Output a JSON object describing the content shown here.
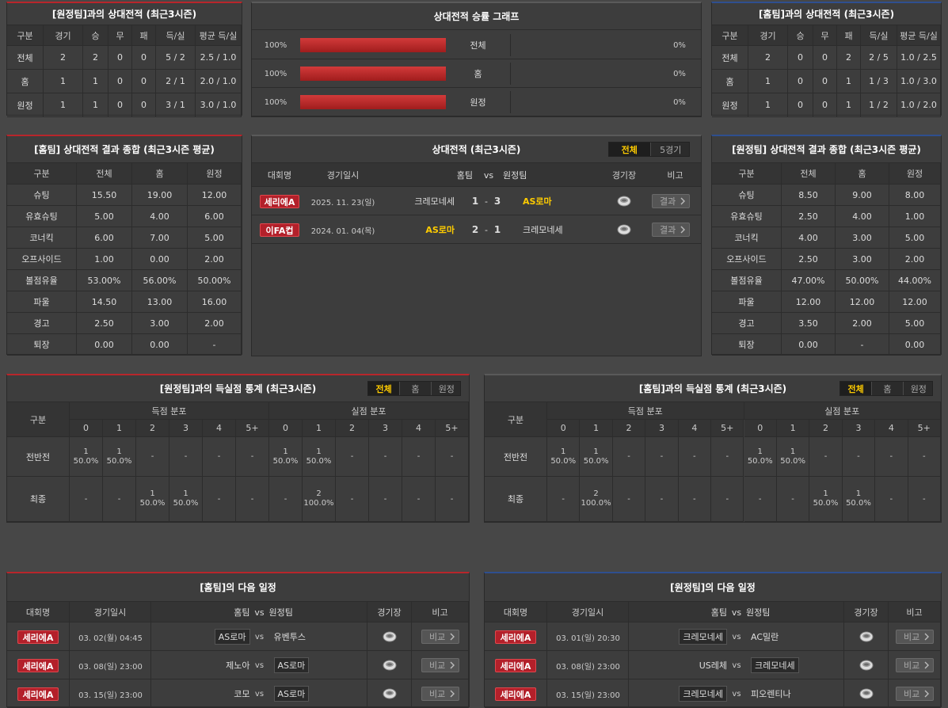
{
  "h2h_vs_away": {
    "title": "[원정팀]과의 상대전적 (최근3시즌)",
    "header": [
      "구분",
      "경기",
      "승",
      "무",
      "패",
      "득/실",
      "평균 득/실"
    ],
    "rows": [
      [
        "전체",
        2,
        2,
        0,
        0,
        "5 / 2",
        "2.5 / 1.0"
      ],
      [
        "홈",
        1,
        1,
        0,
        0,
        "2 / 1",
        "2.0 / 1.0"
      ],
      [
        "원정",
        1,
        1,
        0,
        0,
        "3 / 1",
        "3.0 / 1.0"
      ]
    ]
  },
  "win_rate": {
    "title": "상대전적 승률 그래프",
    "rows": [
      {
        "win_label": "100%",
        "win": 100,
        "label": "전체",
        "loss": 0,
        "loss_label": "0%"
      },
      {
        "win_label": "100%",
        "win": 100,
        "label": "홈",
        "loss": 0,
        "loss_label": "0%"
      },
      {
        "win_label": "100%",
        "win": 100,
        "label": "원정",
        "loss": 0,
        "loss_label": "0%"
      }
    ]
  },
  "h2h_vs_home": {
    "title": "[홈팀]과의 상대전적 (최근3시즌)",
    "header": [
      "구분",
      "경기",
      "승",
      "무",
      "패",
      "득/실",
      "평균 득/실"
    ],
    "rows": [
      [
        "전체",
        2,
        0,
        0,
        2,
        "2 / 5",
        "1.0 / 2.5"
      ],
      [
        "홈",
        1,
        0,
        0,
        1,
        "1 / 3",
        "1.0 / 3.0"
      ],
      [
        "원정",
        1,
        0,
        0,
        1,
        "1 / 2",
        "1.0 / 2.0"
      ]
    ]
  },
  "summary_home": {
    "title": "[홈팀] 상대전적 결과 종합 (최근3시즌 평균)",
    "header": [
      "구분",
      "전체",
      "홈",
      "원정"
    ],
    "rows": [
      [
        "슈팅",
        "15.50",
        "19.00",
        "12.00"
      ],
      [
        "유효슈팅",
        "5.00",
        "4.00",
        "6.00"
      ],
      [
        "코너킥",
        "6.00",
        "7.00",
        "5.00"
      ],
      [
        "오프사이드",
        "1.00",
        "0.00",
        "2.00"
      ],
      [
        "볼점유율",
        "53.00%",
        "56.00%",
        "50.00%"
      ],
      [
        "파울",
        "14.50",
        "13.00",
        "16.00"
      ],
      [
        "경고",
        "2.50",
        "3.00",
        "2.00"
      ],
      [
        "퇴장",
        "0.00",
        "0.00",
        "-"
      ]
    ]
  },
  "recent_h2h": {
    "title": "상대전적 (최근3시즌)",
    "tabs": [
      "전체",
      "5경기"
    ],
    "header": [
      "대회명",
      "경기일시",
      "홈팀",
      "vs",
      "원정팀",
      "경기장",
      "비고"
    ],
    "rows": [
      {
        "league": "세리에A",
        "date": "2025. 11. 23(일)",
        "home": "크레모네세",
        "home_score": 1,
        "sep": "-",
        "away_score": 3,
        "away": "AS로마",
        "note": "결과"
      },
      {
        "league": "이FA컵",
        "date": "2024. 01. 04(목)",
        "home": "AS로마",
        "home_score": 2,
        "sep": "-",
        "away_score": 1,
        "away": "크레모네세",
        "note": "결과"
      }
    ]
  },
  "summary_away": {
    "title": "[원정팀] 상대전적 결과 종합 (최근3시즌 평균)",
    "header": [
      "구분",
      "전체",
      "홈",
      "원정"
    ],
    "rows": [
      [
        "슈팅",
        "8.50",
        "9.00",
        "8.00"
      ],
      [
        "유효슈팅",
        "2.50",
        "4.00",
        "1.00"
      ],
      [
        "코너킥",
        "4.00",
        "3.00",
        "5.00"
      ],
      [
        "오프사이드",
        "2.50",
        "3.00",
        "2.00"
      ],
      [
        "볼점유율",
        "47.00%",
        "50.00%",
        "44.00%"
      ],
      [
        "파울",
        "12.00",
        "12.00",
        "12.00"
      ],
      [
        "경고",
        "3.50",
        "2.00",
        "5.00"
      ],
      [
        "퇴장",
        "0.00",
        "-",
        "0.00"
      ]
    ]
  },
  "goals_vs_away": {
    "title": "[원정팀]과의 득실점 통계 (최근3시즌)",
    "tabs": [
      "전체",
      "홈",
      "원정"
    ],
    "header": "구분",
    "groups": [
      "득점 분포",
      "실점 분포"
    ],
    "buckets": [
      0,
      1,
      2,
      3,
      4,
      "5+"
    ],
    "rows": [
      {
        "label": "전반전",
        "scored": [
          {
            "count": 1,
            "pct": "50.0%"
          },
          {
            "count": 1,
            "pct": "50.0%"
          },
          "-",
          "-",
          "-",
          "-"
        ],
        "conceded": [
          {
            "count": 1,
            "pct": "50.0%"
          },
          {
            "count": 1,
            "pct": "50.0%"
          },
          "-",
          "-",
          "-",
          "-"
        ]
      },
      {
        "label": "최종",
        "scored": [
          "-",
          "-",
          {
            "count": 1,
            "pct": "50.0%"
          },
          {
            "count": 1,
            "pct": "50.0%"
          },
          "-",
          "-"
        ],
        "conceded": [
          "-",
          {
            "count": 2,
            "pct": "100.0%"
          },
          "-",
          "-",
          "-",
          "-"
        ]
      }
    ]
  },
  "goals_vs_home": {
    "title": "[홈팀]과의 득실점 통계 (최근3시즌)",
    "tabs": [
      "전체",
      "홈",
      "원정"
    ],
    "header": "구분",
    "groups": [
      "득점 분포",
      "실점 분포"
    ],
    "buckets": [
      0,
      1,
      2,
      3,
      4,
      "5+"
    ],
    "rows": [
      {
        "label": "전반전",
        "scored": [
          {
            "count": 1,
            "pct": "50.0%"
          },
          {
            "count": 1,
            "pct": "50.0%"
          },
          "-",
          "-",
          "-",
          "-"
        ],
        "conceded": [
          {
            "count": 1,
            "pct": "50.0%"
          },
          {
            "count": 1,
            "pct": "50.0%"
          },
          "-",
          "-",
          "-",
          "-"
        ]
      },
      {
        "label": "최종",
        "scored": [
          "-",
          {
            "count": 2,
            "pct": "100.0%"
          },
          "-",
          "-",
          "-",
          "-"
        ],
        "conceded": [
          "-",
          "-",
          {
            "count": 1,
            "pct": "50.0%"
          },
          {
            "count": 1,
            "pct": "50.0%"
          },
          "-",
          "-"
        ]
      }
    ]
  },
  "next_home": {
    "title": "[홈팀]의 다음 일정",
    "header": [
      "대회명",
      "경기일시",
      "홈팀",
      "vs",
      "원정팀",
      "경기장",
      "비고"
    ],
    "rows": [
      {
        "league": "세리에A",
        "date": "03. 02(월) 04:45",
        "home": "AS로마",
        "vs": "vs",
        "away": "유벤투스",
        "note": "비교"
      },
      {
        "league": "세리에A",
        "date": "03. 08(일) 23:00",
        "home": "제노아",
        "vs": "vs",
        "away": "AS로마",
        "note": "비교"
      },
      {
        "league": "세리에A",
        "date": "03. 15(일) 23:00",
        "home": "코모",
        "vs": "vs",
        "away": "AS로마",
        "note": "비교"
      }
    ]
  },
  "next_away": {
    "title": "[원정팀]의 다음 일정",
    "header": [
      "대회명",
      "경기일시",
      "홈팀",
      "vs",
      "원정팀",
      "경기장",
      "비고"
    ],
    "rows": [
      {
        "league": "세리에A",
        "date": "03. 01(일) 20:30",
        "home": "크레모네세",
        "vs": "vs",
        "away": "AC밀란",
        "note": "비교"
      },
      {
        "league": "세리에A",
        "date": "03. 08(일) 23:00",
        "home": "US레체",
        "vs": "vs",
        "away": "크레모네세",
        "note": "비교"
      },
      {
        "league": "세리에A",
        "date": "03. 15(일) 23:00",
        "home": "크레모네세",
        "vs": "vs",
        "away": "피오렌티나",
        "note": "비교"
      }
    ]
  }
}
